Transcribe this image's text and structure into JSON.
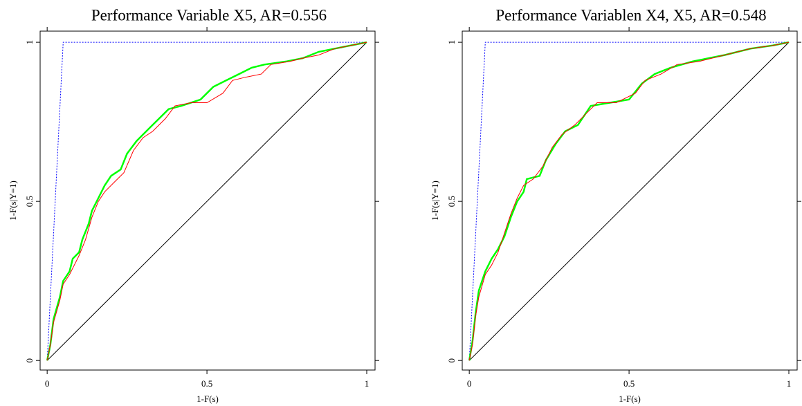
{
  "chart_data": [
    {
      "type": "line",
      "title": "Performance Variable X5, AR=0.556",
      "x_label": "1-F(s)",
      "y_label": "1-F(s|Y=1)",
      "xlim": [
        -0.022,
        1.026
      ],
      "ylim": [
        -0.03,
        1.035
      ],
      "xticks": [
        0,
        0.5,
        1
      ],
      "yticks": [
        0,
        0.5,
        1
      ],
      "series": [
        {
          "color": "#0000ff",
          "style": "dotted",
          "x": [
            0,
            0.05,
            1
          ],
          "values": [
            0,
            1,
            1
          ]
        },
        {
          "color": "#000000",
          "style": "solid",
          "x": [
            0,
            1
          ],
          "values": [
            0,
            1
          ]
        },
        {
          "color": "#00ff00",
          "style": "solid",
          "x": [
            0,
            0.01,
            0.02,
            0.04,
            0.05,
            0.07,
            0.08,
            0.1,
            0.11,
            0.13,
            0.14,
            0.16,
            0.18,
            0.2,
            0.23,
            0.25,
            0.28,
            0.32,
            0.35,
            0.38,
            0.42,
            0.48,
            0.52,
            0.56,
            0.6,
            0.64,
            0.68,
            0.75,
            0.8,
            0.85,
            0.9,
            0.95,
            1
          ],
          "values": [
            0,
            0.05,
            0.13,
            0.2,
            0.25,
            0.28,
            0.32,
            0.34,
            0.38,
            0.43,
            0.47,
            0.51,
            0.55,
            0.58,
            0.6,
            0.65,
            0.69,
            0.73,
            0.76,
            0.79,
            0.8,
            0.82,
            0.86,
            0.88,
            0.9,
            0.92,
            0.93,
            0.94,
            0.95,
            0.97,
            0.98,
            0.99,
            1
          ]
        },
        {
          "color": "#ff0000",
          "style": "solid",
          "x": [
            0,
            0.01,
            0.02,
            0.04,
            0.05,
            0.07,
            0.09,
            0.1,
            0.12,
            0.14,
            0.16,
            0.18,
            0.21,
            0.24,
            0.27,
            0.3,
            0.33,
            0.37,
            0.4,
            0.45,
            0.5,
            0.55,
            0.58,
            0.62,
            0.67,
            0.7,
            0.76,
            0.8,
            0.85,
            0.9,
            0.95,
            1
          ],
          "values": [
            0,
            0.05,
            0.12,
            0.19,
            0.24,
            0.27,
            0.31,
            0.33,
            0.38,
            0.45,
            0.5,
            0.53,
            0.56,
            0.59,
            0.66,
            0.7,
            0.72,
            0.76,
            0.8,
            0.81,
            0.81,
            0.84,
            0.88,
            0.89,
            0.9,
            0.93,
            0.94,
            0.95,
            0.96,
            0.98,
            0.99,
            1
          ]
        }
      ]
    },
    {
      "type": "line",
      "title": "Performance Variablen X4, X5, AR=0.548",
      "x_label": "1-F(s)",
      "y_label": "1-F(s|Y=1)",
      "xlim": [
        -0.022,
        1.026
      ],
      "ylim": [
        -0.03,
        1.035
      ],
      "xticks": [
        0,
        0.5,
        1
      ],
      "yticks": [
        0,
        0.5,
        1
      ],
      "series": [
        {
          "color": "#0000ff",
          "style": "dotted",
          "x": [
            0,
            0.05,
            1
          ],
          "values": [
            0,
            1,
            1
          ]
        },
        {
          "color": "#000000",
          "style": "solid",
          "x": [
            0,
            1
          ],
          "values": [
            0,
            1
          ]
        },
        {
          "color": "#00ff00",
          "style": "solid",
          "x": [
            0,
            0.01,
            0.02,
            0.03,
            0.05,
            0.07,
            0.09,
            0.11,
            0.13,
            0.15,
            0.17,
            0.18,
            0.22,
            0.24,
            0.27,
            0.3,
            0.34,
            0.38,
            0.44,
            0.5,
            0.54,
            0.58,
            0.63,
            0.7,
            0.8,
            0.88,
            0.95,
            1
          ],
          "values": [
            0,
            0.06,
            0.15,
            0.22,
            0.28,
            0.32,
            0.35,
            0.39,
            0.45,
            0.5,
            0.53,
            0.57,
            0.58,
            0.63,
            0.68,
            0.72,
            0.74,
            0.8,
            0.81,
            0.82,
            0.87,
            0.9,
            0.92,
            0.94,
            0.96,
            0.98,
            0.99,
            1
          ]
        },
        {
          "color": "#ff0000",
          "style": "solid",
          "x": [
            0,
            0.01,
            0.02,
            0.03,
            0.05,
            0.07,
            0.09,
            0.11,
            0.13,
            0.15,
            0.17,
            0.2,
            0.23,
            0.26,
            0.29,
            0.33,
            0.37,
            0.4,
            0.46,
            0.52,
            0.55,
            0.6,
            0.65,
            0.72,
            0.8,
            0.88,
            0.95,
            1
          ],
          "values": [
            0,
            0.05,
            0.14,
            0.2,
            0.27,
            0.3,
            0.34,
            0.4,
            0.46,
            0.51,
            0.55,
            0.57,
            0.61,
            0.67,
            0.71,
            0.74,
            0.78,
            0.81,
            0.81,
            0.84,
            0.88,
            0.9,
            0.93,
            0.94,
            0.96,
            0.98,
            0.99,
            1
          ]
        }
      ]
    }
  ]
}
